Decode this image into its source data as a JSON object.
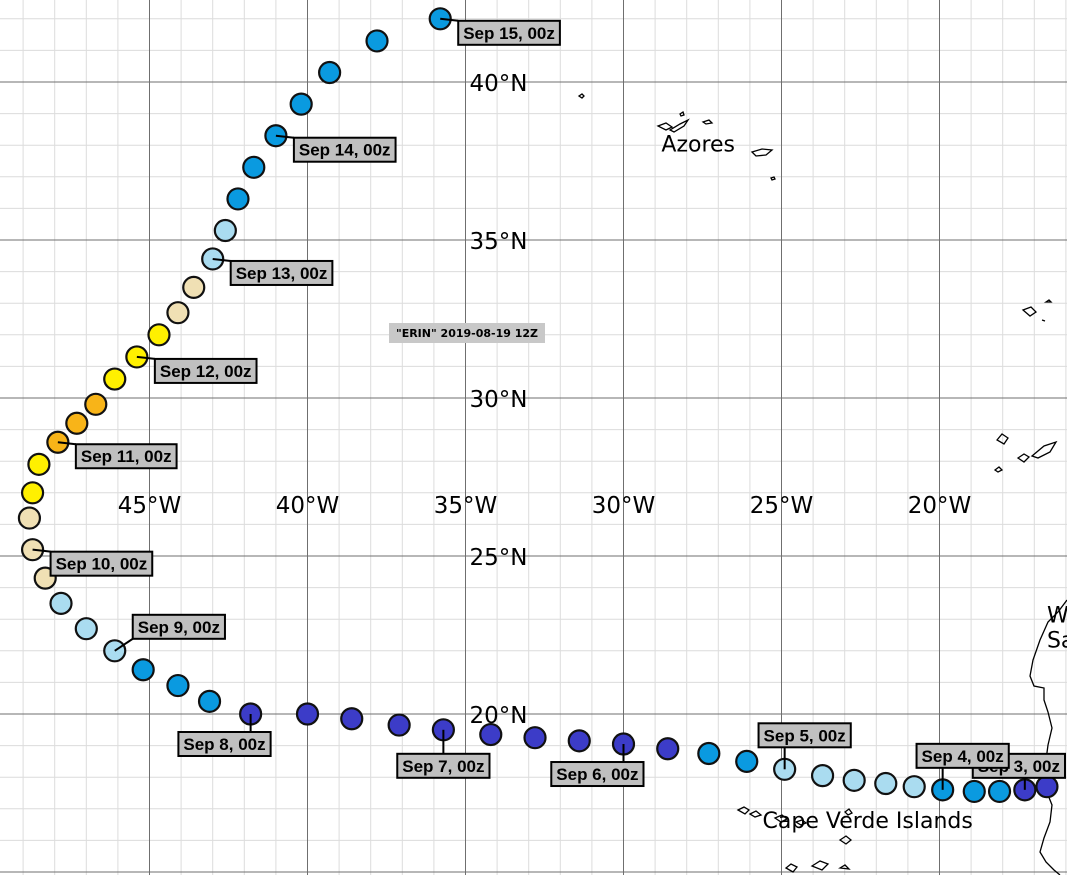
{
  "map": {
    "storm_label": "\"ERIN\" 2019-08-19 12Z",
    "lat_labels": [
      {
        "lat": 40,
        "text": "40°N"
      },
      {
        "lat": 35,
        "text": "35°N"
      },
      {
        "lat": 30,
        "text": "30°N"
      },
      {
        "lat": 25,
        "text": "25°N"
      },
      {
        "lat": 20,
        "text": "20°N"
      }
    ],
    "lon_labels": [
      {
        "lon": -45,
        "text": "45°W"
      },
      {
        "lon": -40,
        "text": "40°W"
      },
      {
        "lon": -35,
        "text": "35°W"
      },
      {
        "lon": -30,
        "text": "30°W"
      },
      {
        "lon": -25,
        "text": "25°W"
      },
      {
        "lon": -20,
        "text": "20°W"
      }
    ],
    "places": [
      {
        "name": "Azores",
        "lon": -28.8,
        "lat": 37.8
      },
      {
        "name": "Cape  Verde  Islands",
        "lon": -25.6,
        "lat": 16.4
      },
      {
        "name": "W",
        "lon": -16.6,
        "lat": 22.9
      },
      {
        "name": "Sa",
        "lon": -16.6,
        "lat": 22.1
      }
    ],
    "colors": {
      "deep_blue": "#3c3cc8",
      "blue": "#0a9ae0",
      "light_blue": "#aadcf0",
      "tan": "#f0e0b4",
      "yellow": "#fff000",
      "orange": "#f8b418"
    },
    "track": [
      {
        "lon": -16.6,
        "lat": 17.7,
        "color": "#3c3cc8"
      },
      {
        "lon": -17.3,
        "lat": 17.6,
        "color": "#3c3cc8"
      },
      {
        "lon": -18.1,
        "lat": 17.55,
        "color": "#0a9ae0"
      },
      {
        "lon": -18.9,
        "lat": 17.55,
        "color": "#0a9ae0"
      },
      {
        "lon": -19.9,
        "lat": 17.6,
        "color": "#0a9ae0"
      },
      {
        "lon": -20.8,
        "lat": 17.7,
        "color": "#aadcf0"
      },
      {
        "lon": -21.7,
        "lat": 17.8,
        "color": "#aadcf0"
      },
      {
        "lon": -22.7,
        "lat": 17.9,
        "color": "#aadcf0"
      },
      {
        "lon": -23.7,
        "lat": 18.05,
        "color": "#aadcf0"
      },
      {
        "lon": -24.9,
        "lat": 18.25,
        "color": "#aadcf0"
      },
      {
        "lon": -26.1,
        "lat": 18.5,
        "color": "#0a9ae0"
      },
      {
        "lon": -27.3,
        "lat": 18.75,
        "color": "#0a9ae0"
      },
      {
        "lon": -28.6,
        "lat": 18.9,
        "color": "#3c3cc8"
      },
      {
        "lon": -30.0,
        "lat": 19.05,
        "color": "#3c3cc8"
      },
      {
        "lon": -31.4,
        "lat": 19.15,
        "color": "#3c3cc8"
      },
      {
        "lon": -32.8,
        "lat": 19.25,
        "color": "#3c3cc8"
      },
      {
        "lon": -34.2,
        "lat": 19.35,
        "color": "#3c3cc8"
      },
      {
        "lon": -35.7,
        "lat": 19.5,
        "color": "#3c3cc8"
      },
      {
        "lon": -37.1,
        "lat": 19.65,
        "color": "#3c3cc8"
      },
      {
        "lon": -38.6,
        "lat": 19.85,
        "color": "#3c3cc8"
      },
      {
        "lon": -40.0,
        "lat": 20.0,
        "color": "#3c3cc8"
      },
      {
        "lon": -41.8,
        "lat": 20.0,
        "color": "#3c3cc8"
      },
      {
        "lon": -43.1,
        "lat": 20.4,
        "color": "#0a9ae0"
      },
      {
        "lon": -44.1,
        "lat": 20.9,
        "color": "#0a9ae0"
      },
      {
        "lon": -45.2,
        "lat": 21.4,
        "color": "#0a9ae0"
      },
      {
        "lon": -46.1,
        "lat": 22.0,
        "color": "#aadcf0"
      },
      {
        "lon": -47.0,
        "lat": 22.7,
        "color": "#aadcf0"
      },
      {
        "lon": -47.8,
        "lat": 23.5,
        "color": "#aadcf0"
      },
      {
        "lon": -48.3,
        "lat": 24.3,
        "color": "#f0e0b4"
      },
      {
        "lon": -48.7,
        "lat": 25.2,
        "color": "#f0e0b4"
      },
      {
        "lon": -48.8,
        "lat": 26.2,
        "color": "#f0e0b4"
      },
      {
        "lon": -48.7,
        "lat": 27.0,
        "color": "#fff000"
      },
      {
        "lon": -48.5,
        "lat": 27.9,
        "color": "#fff000"
      },
      {
        "lon": -47.9,
        "lat": 28.6,
        "color": "#f8b418"
      },
      {
        "lon": -47.3,
        "lat": 29.2,
        "color": "#f8b418"
      },
      {
        "lon": -46.7,
        "lat": 29.8,
        "color": "#f8b418"
      },
      {
        "lon": -46.1,
        "lat": 30.6,
        "color": "#fff000"
      },
      {
        "lon": -45.4,
        "lat": 31.3,
        "color": "#fff000"
      },
      {
        "lon": -44.7,
        "lat": 32.0,
        "color": "#fff000"
      },
      {
        "lon": -44.1,
        "lat": 32.7,
        "color": "#f0e0b4"
      },
      {
        "lon": -43.6,
        "lat": 33.5,
        "color": "#f0e0b4"
      },
      {
        "lon": -43.0,
        "lat": 34.4,
        "color": "#aadcf0"
      },
      {
        "lon": -42.6,
        "lat": 35.3,
        "color": "#aadcf0"
      },
      {
        "lon": -42.2,
        "lat": 36.3,
        "color": "#0a9ae0"
      },
      {
        "lon": -41.7,
        "lat": 37.3,
        "color": "#0a9ae0"
      },
      {
        "lon": -41.0,
        "lat": 38.3,
        "color": "#0a9ae0"
      },
      {
        "lon": -40.2,
        "lat": 39.3,
        "color": "#0a9ae0"
      },
      {
        "lon": -39.3,
        "lat": 40.3,
        "color": "#0a9ae0"
      },
      {
        "lon": -37.8,
        "lat": 41.3,
        "color": "#0a9ae0"
      },
      {
        "lon": -35.8,
        "lat": 42.0,
        "color": "#0a9ae0"
      }
    ],
    "date_labels": [
      {
        "text": "Sep 3, 00z",
        "track_index": 1,
        "side": "above-right"
      },
      {
        "text": "Sep 4, 00z",
        "track_index": 4,
        "side": "above"
      },
      {
        "text": "Sep 5, 00z",
        "track_index": 9,
        "side": "above"
      },
      {
        "text": "Sep 6, 00z",
        "track_index": 13,
        "side": "below-left"
      },
      {
        "text": "Sep 7, 00z",
        "track_index": 17,
        "side": "below"
      },
      {
        "text": "Sep 8, 00z",
        "track_index": 21,
        "side": "below-left"
      },
      {
        "text": "Sep 9, 00z",
        "track_index": 25,
        "side": "above-right"
      },
      {
        "text": "Sep 10, 00z",
        "track_index": 29,
        "side": "right"
      },
      {
        "text": "Sep 11, 00z",
        "track_index": 33,
        "side": "right"
      },
      {
        "text": "Sep 12, 00z",
        "track_index": 37,
        "side": "right"
      },
      {
        "text": "Sep 13, 00z",
        "track_index": 41,
        "side": "right"
      },
      {
        "text": "Sep 14, 00z",
        "track_index": 45,
        "side": "right"
      },
      {
        "text": "Sep 15, 00z",
        "track_index": 49,
        "side": "right"
      }
    ]
  }
}
